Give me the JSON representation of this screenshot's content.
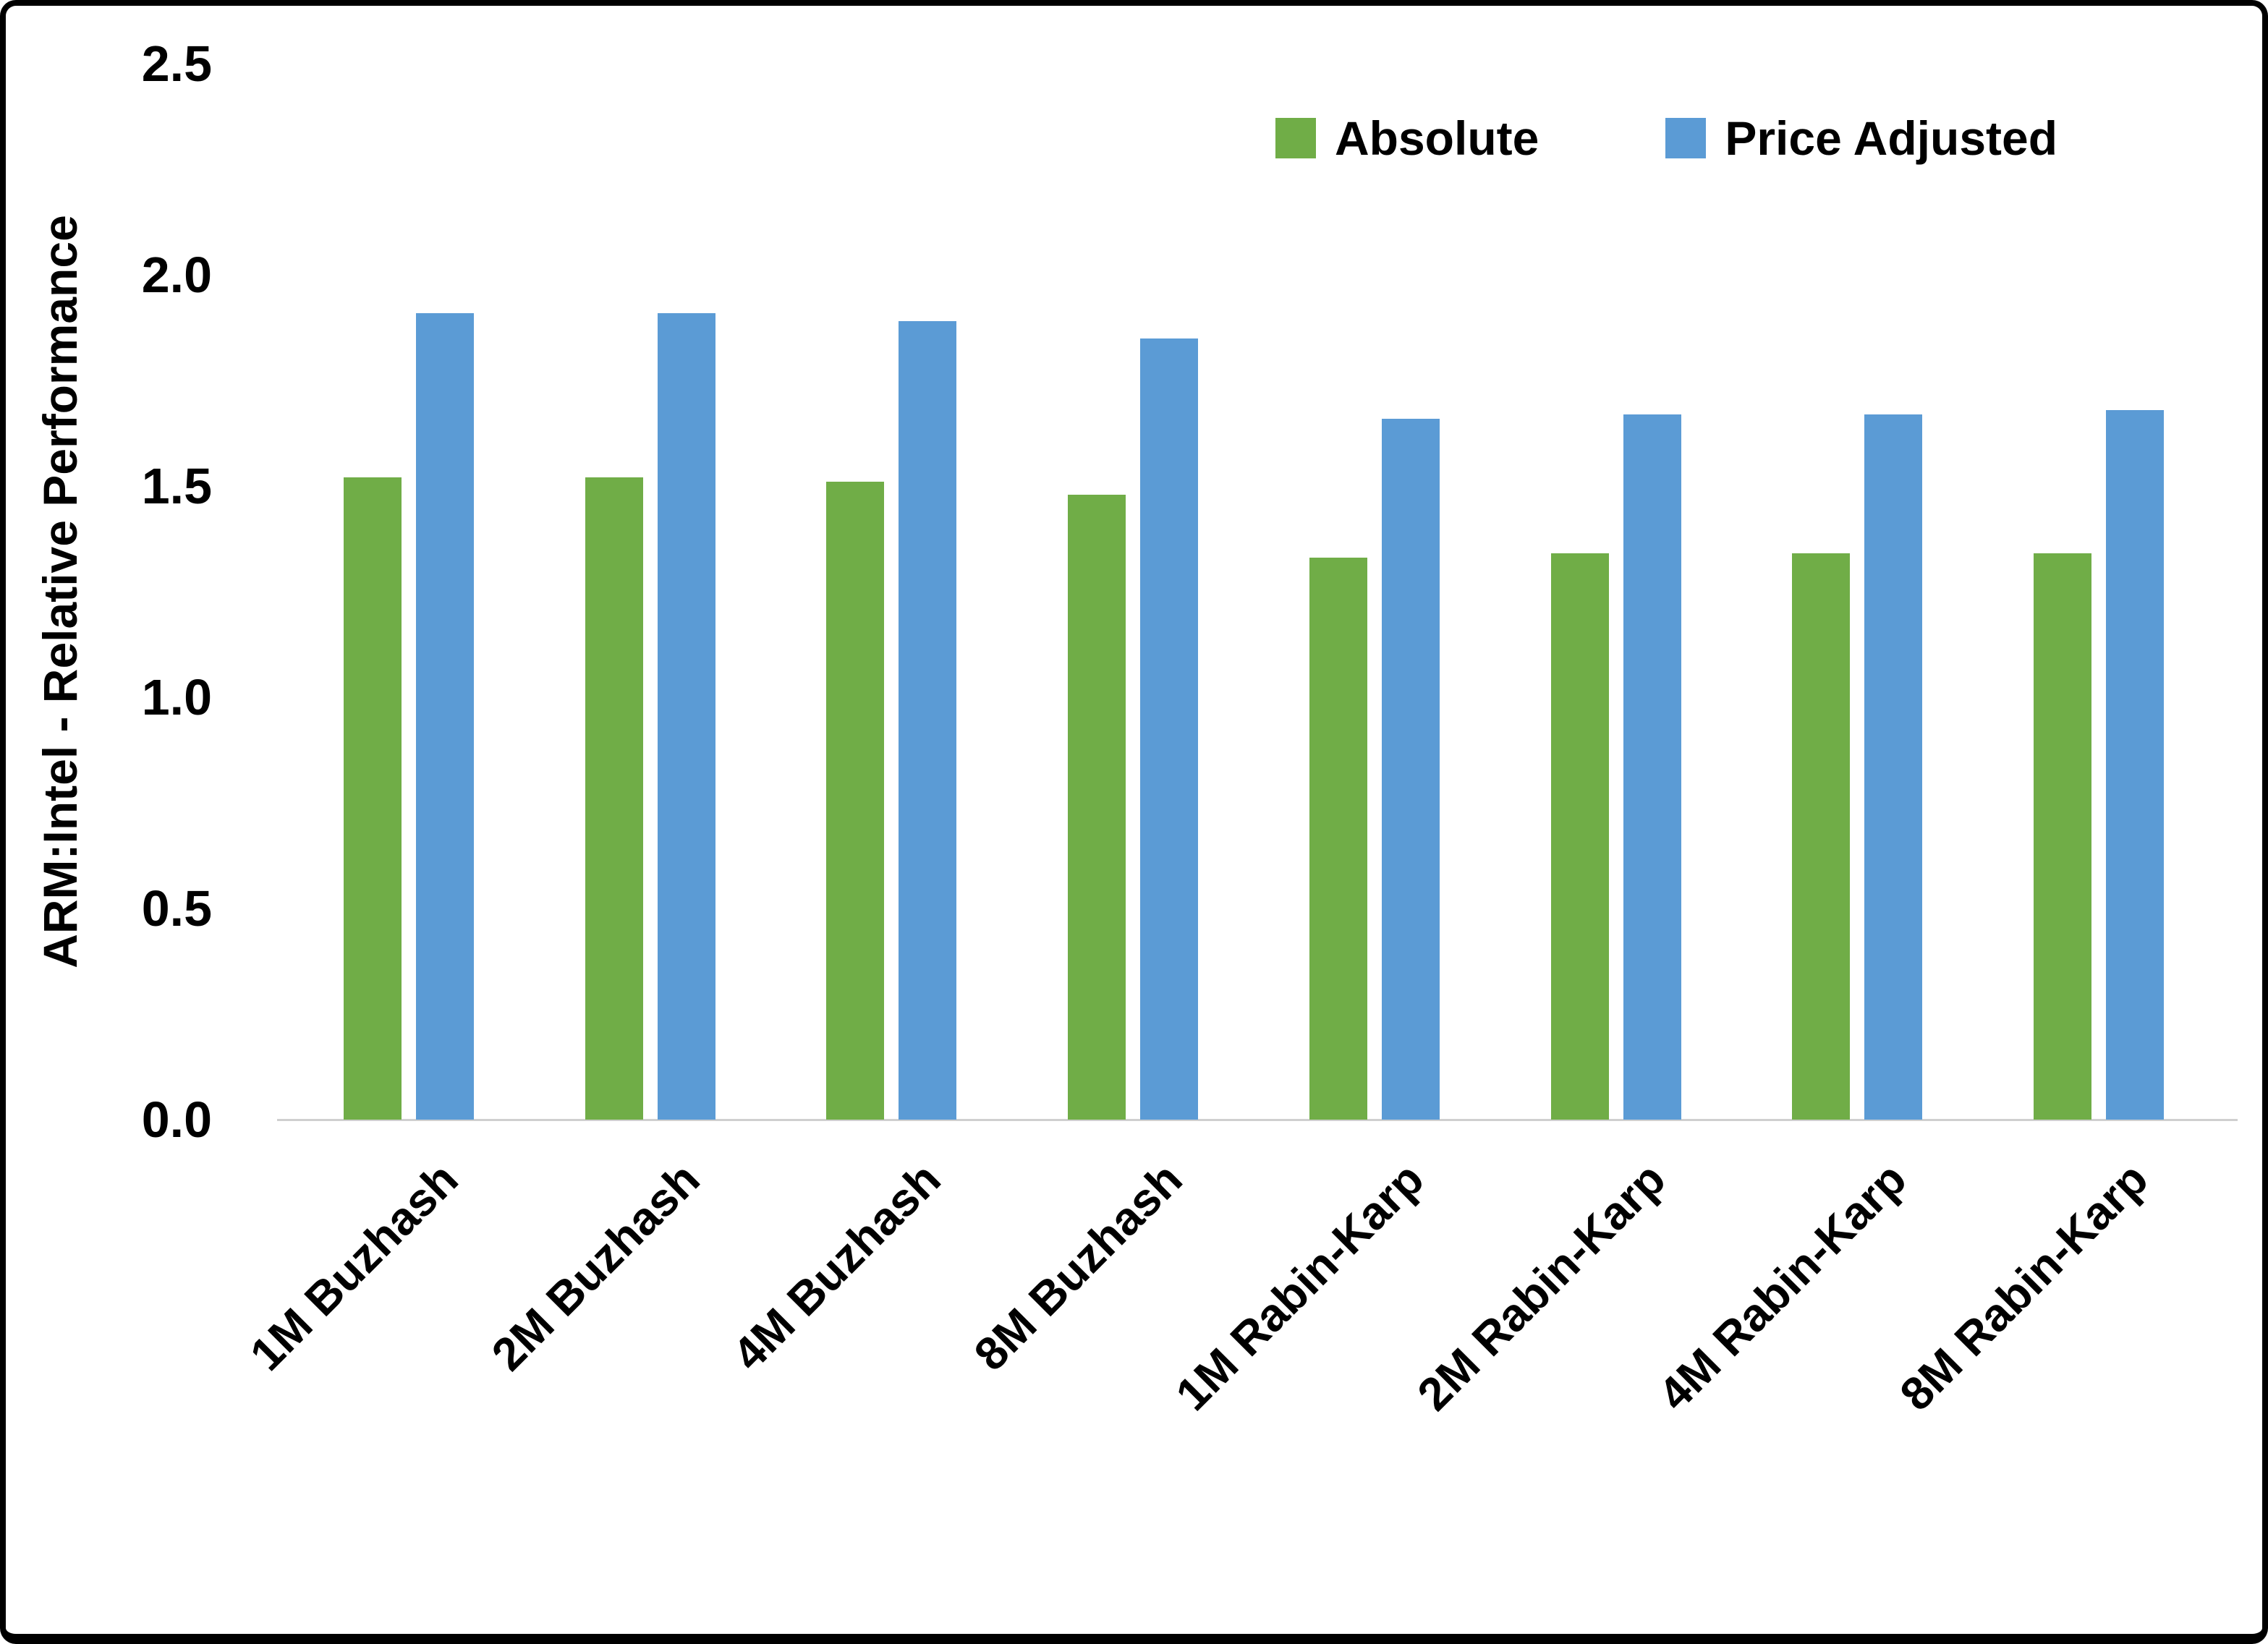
{
  "chart_data": {
    "type": "bar",
    "title": "",
    "xlabel": "",
    "ylabel": "ARM:Intel - Relative Performance",
    "ylim": [
      0,
      2.5
    ],
    "yticks": [
      0.0,
      0.5,
      1.0,
      1.5,
      2.0,
      2.5
    ],
    "grid": false,
    "legend_position": "top-right-inside",
    "categories": [
      "1M Buzhash",
      "2M Buzhash",
      "4M Buzhash",
      "8M Buzhash",
      "1M Rabin-Karp",
      "2M Rabin-Karp",
      "4M Rabin-Karp",
      "8M Rabin-Karp"
    ],
    "series": [
      {
        "name": "Absolute",
        "color": "#70AD47",
        "values": [
          1.52,
          1.52,
          1.51,
          1.48,
          1.33,
          1.34,
          1.34,
          1.34
        ]
      },
      {
        "name": "Price Adjusted",
        "color": "#5B9BD5",
        "values": [
          1.91,
          1.91,
          1.89,
          1.85,
          1.66,
          1.67,
          1.67,
          1.68
        ]
      }
    ]
  },
  "colors": {
    "baseline": "#cfcfcf",
    "frame_border": "#000000",
    "background": "#ffffff",
    "text": "#000000"
  }
}
